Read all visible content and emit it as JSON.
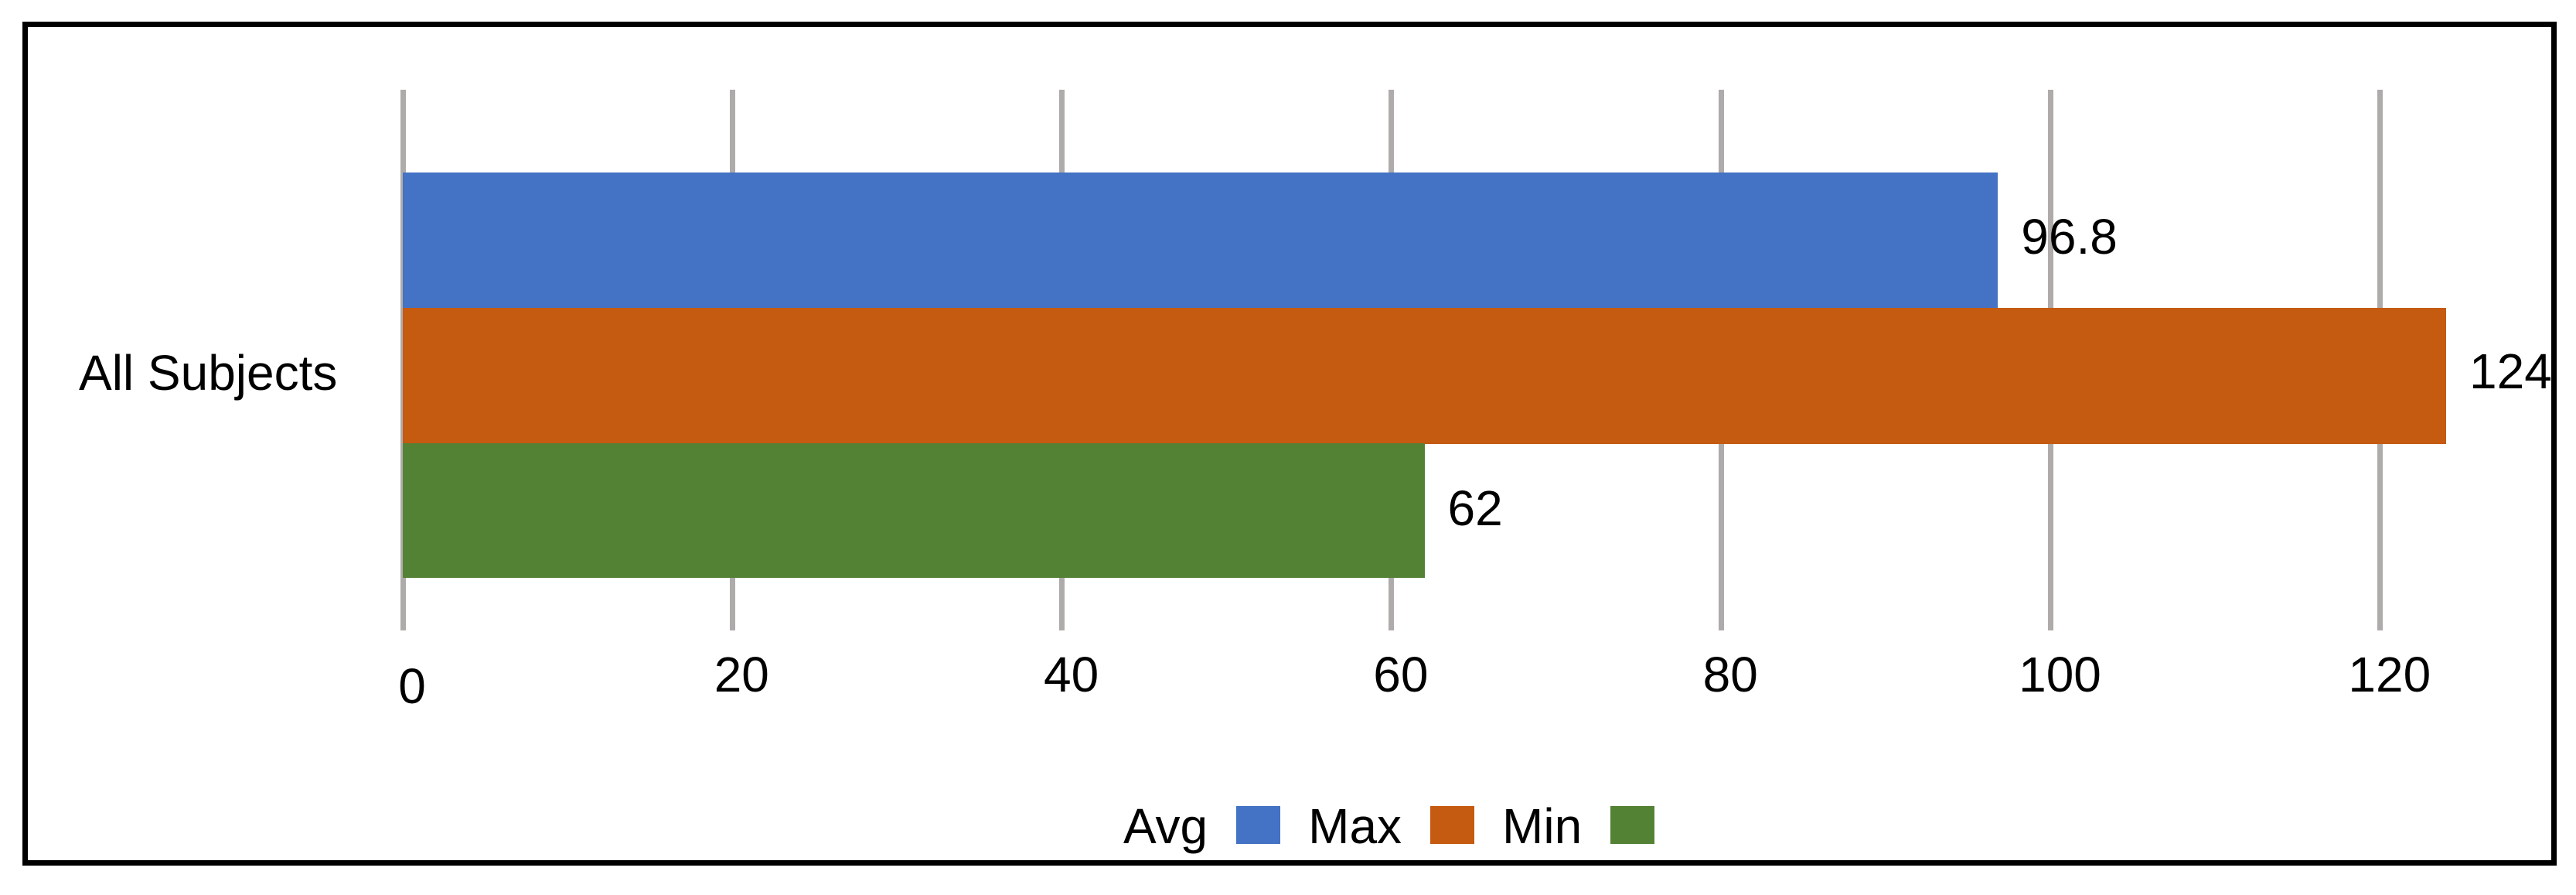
{
  "chart_data": {
    "type": "bar",
    "orientation": "horizontal",
    "title": "",
    "xlabel": "",
    "ylabel": "",
    "categories": [
      "All Subjects"
    ],
    "series": [
      {
        "name": "Avg",
        "values": [
          96.8
        ],
        "color": "#4472C4",
        "label": "96.8"
      },
      {
        "name": "Max",
        "values": [
          124
        ],
        "color": "#C55A11",
        "label": "124"
      },
      {
        "name": "Min",
        "values": [
          62
        ],
        "color": "#548235",
        "label": "62"
      }
    ],
    "xlim": [
      0,
      120
    ],
    "x_ticks": [
      0,
      20,
      40,
      60,
      80,
      100,
      120
    ],
    "x_tick_labels": [
      "0",
      "20",
      "40",
      "60",
      "80",
      "100",
      "120"
    ],
    "grid": {
      "vertical": true,
      "horizontal": false,
      "color": "#AFABAB"
    },
    "data_labels": true,
    "legend": {
      "position": "bottom",
      "entries": [
        {
          "label": "Avg",
          "color": "#4472C4"
        },
        {
          "label": "Max",
          "color": "#C55A11"
        },
        {
          "label": "Min",
          "color": "#548235"
        }
      ]
    }
  },
  "category_label": "All Subjects"
}
